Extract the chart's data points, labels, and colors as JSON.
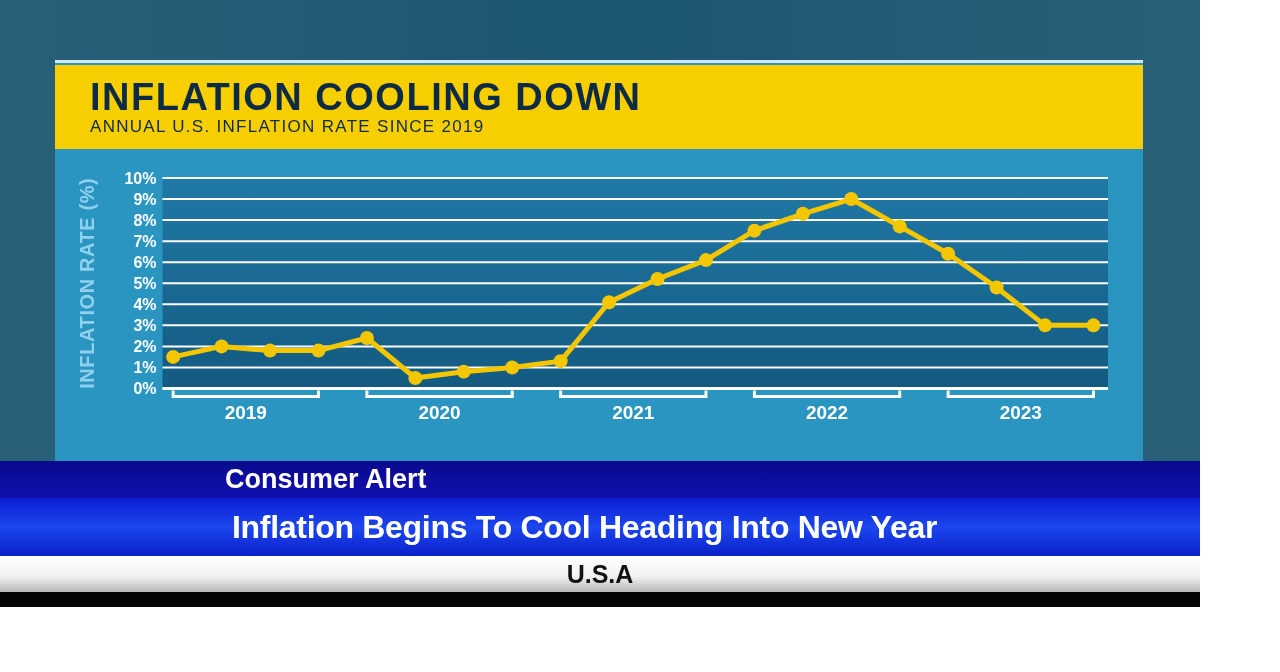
{
  "chart_data": {
    "type": "line",
    "title": "INFLATION COOLING DOWN",
    "subtitle": "ANNUAL U.S. INFLATION RATE SINCE 2019",
    "ylabel": "INFLATION RATE (%)",
    "x": [
      2019.125,
      2019.375,
      2019.625,
      2019.875,
      2020.125,
      2020.375,
      2020.625,
      2020.875,
      2021.125,
      2021.375,
      2021.625,
      2021.875,
      2022.125,
      2022.375,
      2022.625,
      2022.875,
      2023.125,
      2023.375,
      2023.625,
      2023.875
    ],
    "values": [
      1.5,
      2.0,
      1.8,
      1.8,
      2.4,
      0.5,
      0.8,
      1.0,
      1.3,
      4.1,
      5.2,
      6.1,
      7.5,
      8.3,
      9.0,
      7.7,
      6.4,
      4.8,
      3.0,
      3.0
    ],
    "color": "#f4c600",
    "xlim": [
      2019.07,
      2023.95
    ],
    "xticks": [
      {
        "value": 2019.5,
        "label": "2019"
      },
      {
        "value": 2020.5,
        "label": "2020"
      },
      {
        "value": 2021.5,
        "label": "2021"
      },
      {
        "value": 2022.5,
        "label": "2022"
      },
      {
        "value": 2023.5,
        "label": "2023"
      }
    ],
    "ylim": [
      0,
      10
    ],
    "yticks": [
      {
        "value": 0,
        "label": "0%"
      },
      {
        "value": 1,
        "label": "1%"
      },
      {
        "value": 2,
        "label": "2%"
      },
      {
        "value": 3,
        "label": "3%"
      },
      {
        "value": 4,
        "label": "4%"
      },
      {
        "value": 5,
        "label": "5%"
      },
      {
        "value": 6,
        "label": "6%"
      },
      {
        "value": 7,
        "label": "7%"
      },
      {
        "value": 8,
        "label": "8%"
      },
      {
        "value": 9,
        "label": "9%"
      },
      {
        "value": 10,
        "label": "10%"
      }
    ],
    "grid": "y",
    "marker": "circle",
    "annotations": [
      "Consumer Alert",
      "Inflation Begins To Cool Heading Into New Year",
      "U.S.A"
    ]
  }
}
